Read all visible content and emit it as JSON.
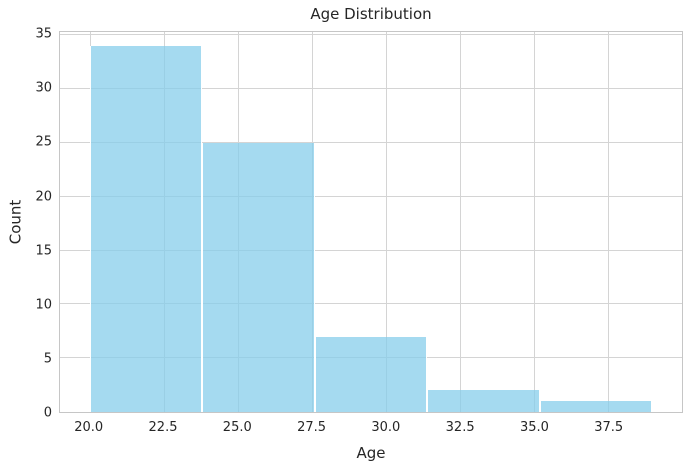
{
  "chart_data": {
    "type": "bar",
    "subtype": "histogram",
    "title": "Age Distribution",
    "xlabel": "Age",
    "ylabel": "Count",
    "bin_edges": [
      20.0,
      23.8,
      27.6,
      31.4,
      35.2,
      39.0
    ],
    "counts": [
      34,
      25,
      7,
      2,
      1
    ],
    "xlim": [
      19.0,
      40.0
    ],
    "ylim": [
      0,
      35.3
    ],
    "xtick_values": [
      20.0,
      22.5,
      25.0,
      27.5,
      30.0,
      32.5,
      35.0,
      37.5
    ],
    "xtick_labels": [
      "20.0",
      "22.5",
      "25.0",
      "27.5",
      "30.0",
      "32.5",
      "35.0",
      "37.5"
    ],
    "ytick_values": [
      0,
      5,
      10,
      15,
      20,
      25,
      30,
      35
    ],
    "ytick_labels": [
      "0",
      "5",
      "10",
      "15",
      "20",
      "25",
      "30",
      "35"
    ],
    "grid": true,
    "legend": null,
    "colors": {
      "bar_fill": "#87ceeb",
      "bar_fill_alpha": 0.75,
      "bar_fill_rendered": "#a5daf0",
      "bar_edge": "#ffffff",
      "grid": "#d4d4d4",
      "spine": "#c6c6c6",
      "text": "#262626",
      "background": "#ffffff"
    }
  }
}
